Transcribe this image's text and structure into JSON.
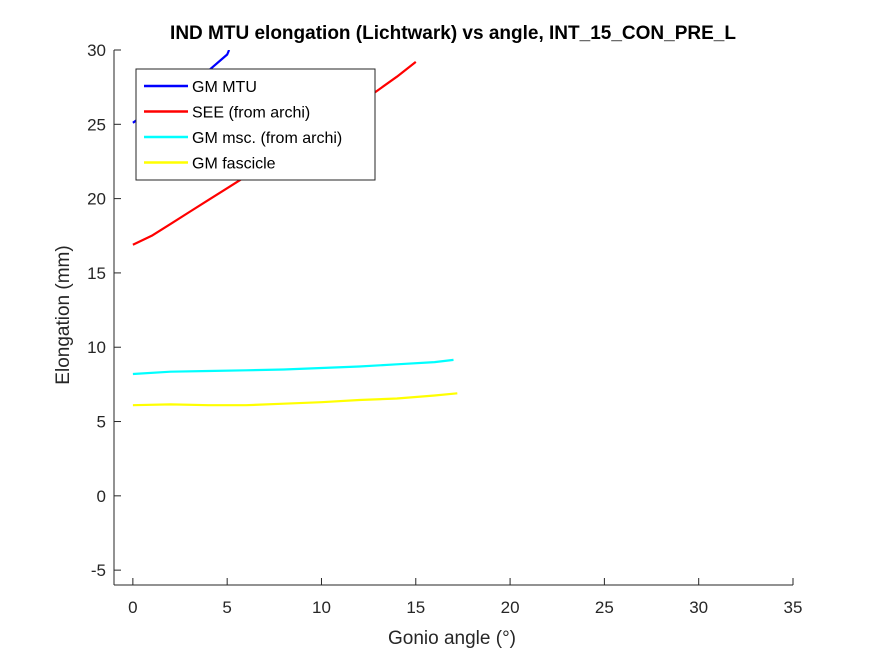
{
  "chart_data": {
    "type": "line",
    "title": "IND MTU elongation (Lichtwark) vs angle, INT_15_CON_PRE_L",
    "xlabel": "Gonio angle (°)",
    "ylabel": "Elongation (mm)",
    "xlim": [
      -1,
      35
    ],
    "ylim": [
      -6,
      30
    ],
    "xticks": [
      0,
      5,
      10,
      15,
      20,
      25,
      30,
      35
    ],
    "yticks": [
      -5,
      0,
      5,
      10,
      15,
      20,
      25,
      30
    ],
    "grid": false,
    "legend_position": "top-left",
    "series": [
      {
        "name": "GM MTU",
        "color": "#0000ff",
        "x": [
          0,
          1,
          2,
          3,
          4,
          5,
          5.1
        ],
        "y": [
          25.1,
          26.0,
          26.9,
          27.8,
          28.6,
          29.7,
          30.0
        ]
      },
      {
        "name": "SEE (from archi)",
        "color": "#ff0000",
        "x": [
          0,
          1,
          2,
          3,
          4,
          5,
          6,
          7,
          8,
          9,
          10,
          11,
          12,
          13,
          14,
          15
        ],
        "y": [
          16.9,
          17.5,
          18.3,
          19.1,
          19.9,
          20.7,
          21.5,
          22.3,
          23.1,
          23.9,
          24.7,
          25.5,
          26.4,
          27.3,
          28.2,
          29.2
        ]
      },
      {
        "name": "GM msc. (from archi)",
        "color": "#00ffff",
        "x": [
          0,
          2,
          4,
          6,
          8,
          10,
          12,
          14,
          16,
          17
        ],
        "y": [
          8.2,
          8.35,
          8.4,
          8.45,
          8.5,
          8.6,
          8.7,
          8.85,
          9.0,
          9.15
        ]
      },
      {
        "name": "GM fascicle",
        "color": "#ffff00",
        "x": [
          0,
          2,
          4,
          6,
          8,
          10,
          12,
          14,
          16,
          17.2
        ],
        "y": [
          6.1,
          6.15,
          6.1,
          6.1,
          6.2,
          6.3,
          6.45,
          6.55,
          6.75,
          6.9
        ]
      }
    ]
  }
}
